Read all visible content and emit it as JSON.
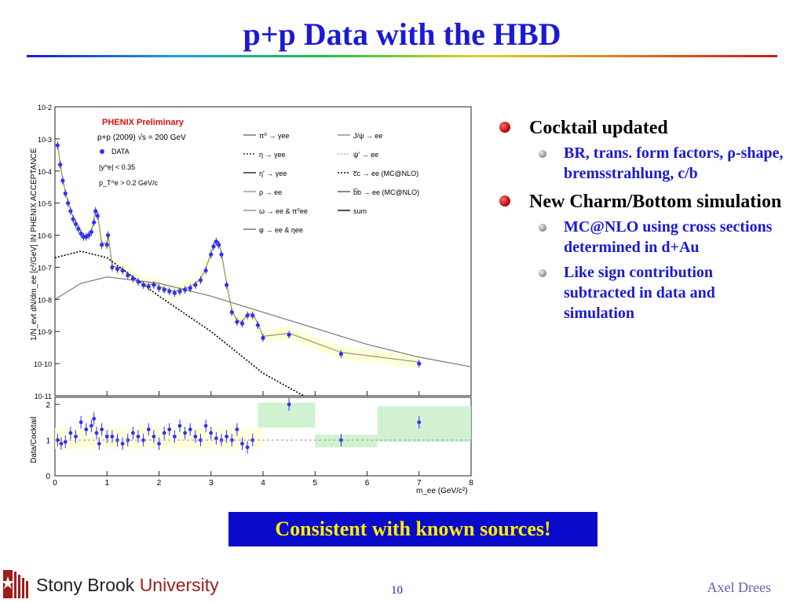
{
  "slide": {
    "title": "p+p Data with the HBD",
    "page_number": "10",
    "author": "Axel Drees",
    "banner": "Consistent with known sources!",
    "logo_text_1": "Stony Brook ",
    "logo_text_2": "University"
  },
  "bullets": [
    {
      "text": "Cocktail updated",
      "sub": [
        "BR, trans. form factors, ρ-shape, bremsstrahlung, c/b"
      ]
    },
    {
      "text": "New Charm/Bottom simulation",
      "sub": [
        "MC@NLO using cross sections determined in d+Au",
        "Like sign contribution subtracted in data and simulation"
      ]
    }
  ],
  "figure": {
    "header": "PHENIX Preliminary",
    "line1": "p+p (2009) √s = 200 GeV",
    "data_label": "DATA",
    "cut1": "|y^e| < 0.35",
    "cut2": "p_T^e > 0.2 GeV/c",
    "ylabel_top": "1/N_evt dN/dm_ee [c²/GeV] IN PHENIX ACCEPTANCE",
    "ylabel_bottom": "Data/Cocktail",
    "xlabel": "m_ee (GeV/c²)",
    "top_ticks": [
      "10-2",
      "10-3",
      "10-4",
      "10-5",
      "10-6",
      "10-7",
      "10-8",
      "10-9",
      "10-10",
      "10-11"
    ],
    "bottom_ticks": [
      "2",
      "1",
      "0"
    ],
    "x_ticks": [
      "0",
      "1",
      "2",
      "3",
      "4",
      "5",
      "6",
      "7",
      "8"
    ],
    "legend_left": [
      "π⁰ → γee",
      "η → γee",
      "η' → γee",
      "ρ → ee",
      "ω → ee & π⁰ee",
      "φ → ee & ηee"
    ],
    "legend_right": [
      "J/ψ → ee",
      "ψ' → ee",
      "c̅c → ee (MC@NLO)",
      "b̅b → ee (MC@NLO)",
      "sum"
    ],
    "colors": {
      "title_blue": "#1a1ad6",
      "phenix_red": "#d81010",
      "data_blue": "#3030ff",
      "band_yellow": "#ffffd8",
      "band_green": "#c8f0c8"
    }
  },
  "chart_data": [
    {
      "type": "scatter",
      "title": "",
      "xlabel": "m_ee (GeV/c²)",
      "ylabel": "1/N_evt dN/dm_ee [c²/GeV] IN PHENIX ACCEPTANCE",
      "xlim": [
        0,
        8
      ],
      "ylim_log10": [
        -11,
        -2
      ],
      "series": [
        {
          "name": "DATA",
          "x": [
            0.05,
            0.1,
            0.15,
            0.2,
            0.25,
            0.3,
            0.35,
            0.4,
            0.45,
            0.5,
            0.55,
            0.6,
            0.65,
            0.7,
            0.75,
            0.78,
            0.82,
            0.9,
            1.0,
            1.02,
            1.1,
            1.2,
            1.3,
            1.4,
            1.5,
            1.6,
            1.7,
            1.8,
            1.9,
            2.0,
            2.1,
            2.2,
            2.3,
            2.4,
            2.5,
            2.6,
            2.7,
            2.8,
            2.9,
            3.0,
            3.05,
            3.1,
            3.15,
            3.2,
            3.3,
            3.4,
            3.5,
            3.6,
            3.7,
            3.8,
            3.9,
            4.0,
            4.5,
            5.5,
            7.0
          ],
          "y_log10": [
            -3.2,
            -3.8,
            -4.3,
            -4.7,
            -5.0,
            -5.25,
            -5.5,
            -5.65,
            -5.8,
            -5.95,
            -6.05,
            -6.05,
            -6.0,
            -5.9,
            -5.6,
            -5.25,
            -5.4,
            -6.3,
            -6.3,
            -6.0,
            -7.0,
            -7.05,
            -7.1,
            -7.25,
            -7.35,
            -7.45,
            -7.55,
            -7.6,
            -7.55,
            -7.65,
            -7.7,
            -7.75,
            -7.8,
            -7.75,
            -7.7,
            -7.65,
            -7.55,
            -7.4,
            -7.1,
            -6.6,
            -6.35,
            -6.2,
            -6.3,
            -6.6,
            -7.55,
            -8.4,
            -8.7,
            -8.75,
            -8.5,
            -8.5,
            -8.8,
            -9.2,
            -9.1,
            -9.7,
            -10.0
          ]
        }
      ]
    },
    {
      "type": "scatter",
      "title": "",
      "xlabel": "m_ee (GeV/c²)",
      "ylabel": "Data/Cocktail",
      "xlim": [
        0,
        8
      ],
      "ylim": [
        0,
        2.2
      ],
      "series": [
        {
          "name": "DATA",
          "x": [
            0.05,
            0.12,
            0.2,
            0.3,
            0.4,
            0.5,
            0.6,
            0.7,
            0.75,
            0.8,
            0.85,
            0.9,
            1.0,
            1.1,
            1.2,
            1.3,
            1.4,
            1.5,
            1.6,
            1.7,
            1.8,
            1.9,
            2.0,
            2.1,
            2.2,
            2.3,
            2.4,
            2.5,
            2.6,
            2.7,
            2.8,
            2.9,
            3.0,
            3.1,
            3.2,
            3.3,
            3.4,
            3.5,
            3.6,
            3.7,
            3.8,
            4.5,
            5.5,
            7.0
          ],
          "y": [
            1.0,
            0.9,
            0.95,
            1.2,
            1.1,
            1.5,
            1.3,
            1.4,
            1.6,
            1.2,
            0.9,
            1.3,
            1.1,
            1.1,
            1.0,
            0.9,
            1.0,
            1.2,
            1.1,
            1.0,
            1.3,
            1.1,
            0.9,
            1.2,
            1.3,
            1.1,
            1.4,
            1.2,
            1.3,
            1.1,
            1.0,
            1.4,
            1.2,
            1.05,
            1.0,
            1.1,
            1.0,
            1.3,
            0.9,
            0.8,
            1.0,
            2.0,
            1.0,
            1.5
          ]
        }
      ]
    }
  ]
}
